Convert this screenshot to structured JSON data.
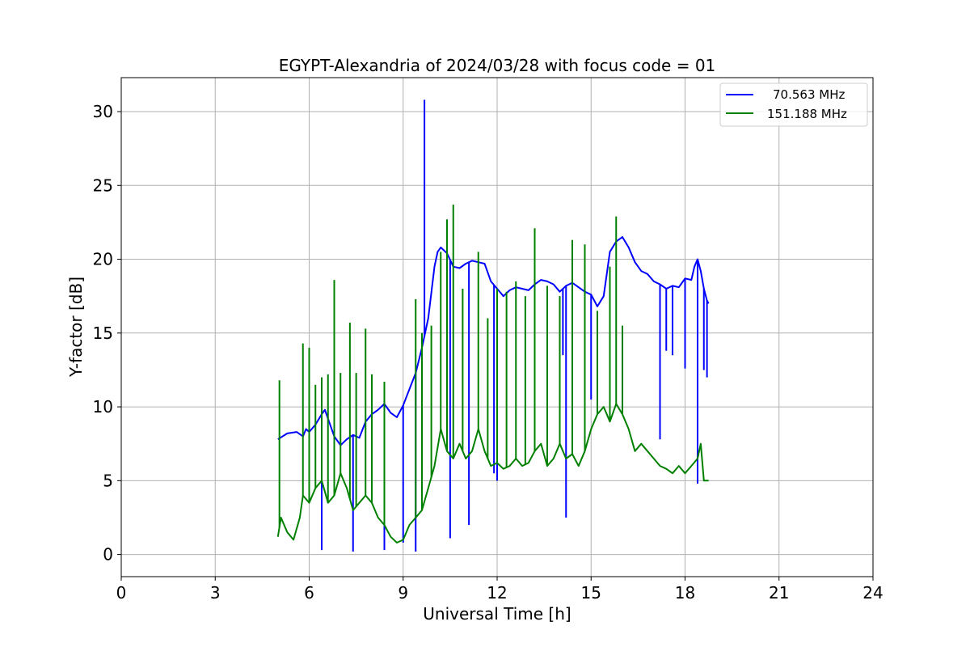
{
  "chart_data": {
    "type": "line",
    "title": "EGYPT-Alexandria of 2024/03/28 with focus code = 01",
    "xlabel": "Universal Time [h]",
    "ylabel": "Y-factor [dB]",
    "xlim": [
      0,
      24
    ],
    "ylim": [
      -1.5,
      32.3
    ],
    "xticks": [
      0,
      3,
      6,
      9,
      12,
      15,
      18,
      21,
      24
    ],
    "xtick_labels": [
      "0",
      "3",
      "6",
      "9",
      "12",
      "15",
      "18",
      "21",
      "24"
    ],
    "yticks": [
      0,
      5,
      10,
      15,
      20,
      25,
      30
    ],
    "ytick_labels": [
      "0",
      "5",
      "10",
      "15",
      "20",
      "25",
      "30"
    ],
    "grid": true,
    "legend_position": "top-right",
    "series": [
      {
        "name": "70.563 MHz",
        "color": "#0000ff",
        "x": [
          5.0,
          5.3,
          5.6,
          5.8,
          5.9,
          6.0,
          6.2,
          6.4,
          6.5,
          6.6,
          6.8,
          7.0,
          7.2,
          7.4,
          7.6,
          7.8,
          8.0,
          8.2,
          8.4,
          8.6,
          8.8,
          9.0,
          9.2,
          9.4,
          9.6,
          9.8,
          10.0,
          10.1,
          10.2,
          10.4,
          10.6,
          10.8,
          11.0,
          11.2,
          11.4,
          11.6,
          11.8,
          12.0,
          12.2,
          12.4,
          12.6,
          12.8,
          13.0,
          13.2,
          13.4,
          13.6,
          13.8,
          14.0,
          14.2,
          14.4,
          14.6,
          14.8,
          15.0,
          15.2,
          15.4,
          15.6,
          15.8,
          16.0,
          16.2,
          16.4,
          16.6,
          16.8,
          17.0,
          17.2,
          17.4,
          17.6,
          17.8,
          18.0,
          18.2,
          18.3,
          18.4,
          18.5,
          18.6,
          18.7,
          18.75
        ],
        "values": [
          7.8,
          8.2,
          8.3,
          8.0,
          8.5,
          8.3,
          8.8,
          9.5,
          9.8,
          9.2,
          8.0,
          7.4,
          7.8,
          8.1,
          7.9,
          9.0,
          9.5,
          9.8,
          10.2,
          9.6,
          9.3,
          10.1,
          11.2,
          12.3,
          14.0,
          16.0,
          19.5,
          20.5,
          20.8,
          20.4,
          19.5,
          19.4,
          19.7,
          19.9,
          19.8,
          19.7,
          18.5,
          18.0,
          17.5,
          17.9,
          18.1,
          18.0,
          17.9,
          18.3,
          18.6,
          18.5,
          18.3,
          17.8,
          18.2,
          18.4,
          18.1,
          17.8,
          17.6,
          16.8,
          17.5,
          20.5,
          21.2,
          21.5,
          20.8,
          19.8,
          19.2,
          19.0,
          18.5,
          18.3,
          18.0,
          18.2,
          18.1,
          18.7,
          18.6,
          19.5,
          20.0,
          19.2,
          18.0,
          17.2,
          17.0
        ],
        "spikes": [
          [
            6.4,
            0.3
          ],
          [
            7.4,
            0.2
          ],
          [
            8.4,
            0.3
          ],
          [
            9.0,
            0.8
          ],
          [
            9.4,
            0.2
          ],
          [
            9.68,
            30.8
          ],
          [
            10.5,
            1.1
          ],
          [
            11.1,
            2.0
          ],
          [
            11.9,
            5.5
          ],
          [
            12.0,
            5.0
          ],
          [
            14.2,
            2.5
          ],
          [
            14.1,
            13.5
          ],
          [
            15.0,
            10.5
          ],
          [
            17.2,
            7.8
          ],
          [
            17.4,
            13.8
          ],
          [
            17.6,
            13.5
          ],
          [
            18.0,
            12.6
          ],
          [
            18.4,
            4.8
          ],
          [
            18.6,
            12.5
          ],
          [
            18.7,
            12.0
          ]
        ]
      },
      {
        "name": "151.188 MHz",
        "color": "#008000",
        "x": [
          5.0,
          5.1,
          5.3,
          5.5,
          5.7,
          5.8,
          6.0,
          6.2,
          6.4,
          6.6,
          6.8,
          7.0,
          7.2,
          7.4,
          7.6,
          7.8,
          8.0,
          8.2,
          8.4,
          8.6,
          8.8,
          9.0,
          9.2,
          9.4,
          9.6,
          9.8,
          10.0,
          10.2,
          10.4,
          10.6,
          10.8,
          11.0,
          11.2,
          11.4,
          11.6,
          11.8,
          12.0,
          12.2,
          12.4,
          12.6,
          12.8,
          13.0,
          13.2,
          13.4,
          13.6,
          13.8,
          14.0,
          14.2,
          14.4,
          14.6,
          14.8,
          15.0,
          15.2,
          15.4,
          15.6,
          15.8,
          16.0,
          16.2,
          16.4,
          16.6,
          16.8,
          17.0,
          17.2,
          17.4,
          17.6,
          17.8,
          18.0,
          18.2,
          18.4,
          18.5,
          18.6,
          18.75
        ],
        "values": [
          1.2,
          2.5,
          1.5,
          1.0,
          2.5,
          4.0,
          3.5,
          4.5,
          5.0,
          3.5,
          4.0,
          5.5,
          4.5,
          3.0,
          3.5,
          4.0,
          3.5,
          2.5,
          2.0,
          1.2,
          0.8,
          1.0,
          2.0,
          2.5,
          3.0,
          4.5,
          6.0,
          8.5,
          7.0,
          6.5,
          7.5,
          6.5,
          7.0,
          8.5,
          7.0,
          6.0,
          6.2,
          5.8,
          6.0,
          6.5,
          6.0,
          6.2,
          7.0,
          7.5,
          6.0,
          6.5,
          7.5,
          6.5,
          6.8,
          6.0,
          7.0,
          8.5,
          9.5,
          10.0,
          9.0,
          10.2,
          9.5,
          8.5,
          7.0,
          7.5,
          7.0,
          6.5,
          6.0,
          5.8,
          5.5,
          6.0,
          5.5,
          6.0,
          6.5,
          7.5,
          5.0,
          5.0
        ],
        "spikes": [
          [
            5.05,
            11.8
          ],
          [
            5.8,
            14.3
          ],
          [
            6.0,
            14.0
          ],
          [
            6.2,
            11.5
          ],
          [
            6.4,
            12.0
          ],
          [
            6.6,
            12.2
          ],
          [
            6.8,
            18.6
          ],
          [
            7.0,
            12.3
          ],
          [
            7.3,
            15.7
          ],
          [
            7.5,
            12.3
          ],
          [
            7.8,
            15.3
          ],
          [
            8.0,
            12.2
          ],
          [
            8.4,
            11.7
          ],
          [
            9.4,
            17.3
          ],
          [
            9.6,
            15.0
          ],
          [
            9.9,
            15.5
          ],
          [
            10.2,
            20.5
          ],
          [
            10.4,
            22.7
          ],
          [
            10.6,
            23.7
          ],
          [
            10.9,
            18.0
          ],
          [
            11.4,
            20.5
          ],
          [
            11.7,
            16.0
          ],
          [
            12.0,
            18.0
          ],
          [
            12.3,
            17.8
          ],
          [
            12.6,
            18.5
          ],
          [
            12.9,
            17.5
          ],
          [
            13.2,
            22.1
          ],
          [
            13.6,
            18.2
          ],
          [
            14.0,
            17.5
          ],
          [
            14.4,
            21.3
          ],
          [
            14.8,
            21.0
          ],
          [
            15.2,
            16.5
          ],
          [
            15.6,
            19.5
          ],
          [
            15.8,
            22.9
          ],
          [
            16.0,
            15.5
          ]
        ]
      }
    ]
  }
}
